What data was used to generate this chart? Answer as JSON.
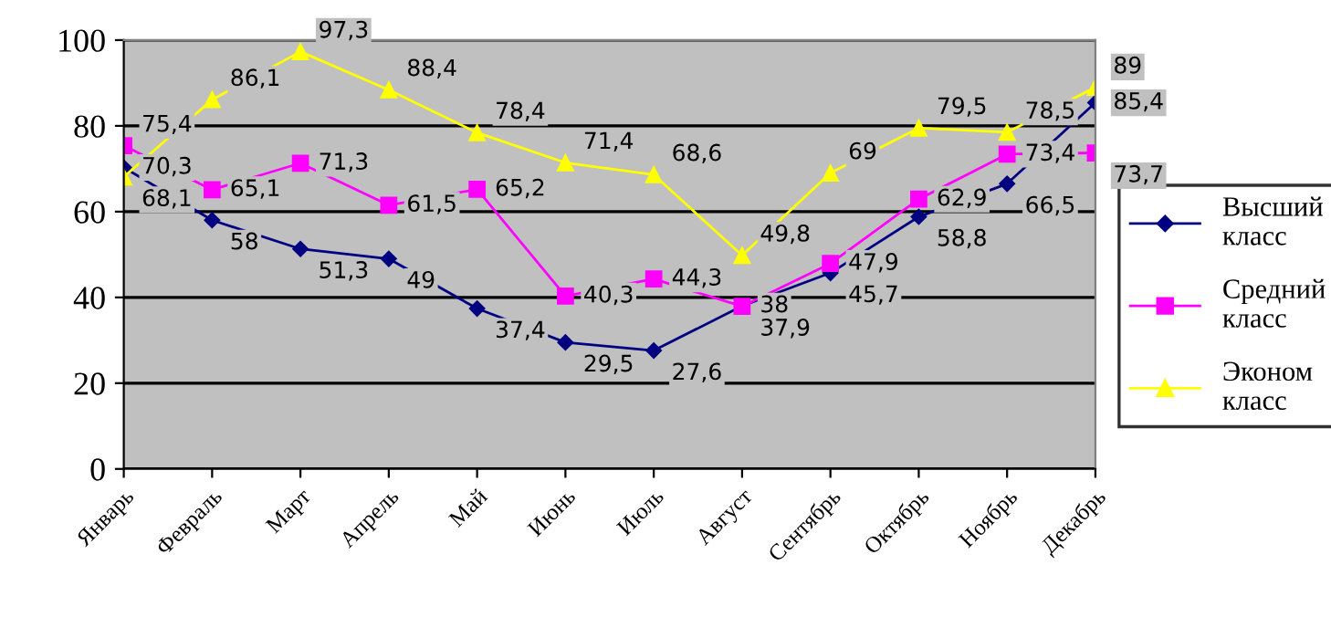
{
  "chart_data": {
    "type": "line",
    "categories": [
      "Январь",
      "Февраль",
      "Март",
      "Апрель",
      "Май",
      "Июнь",
      "Июль",
      "Август",
      "Сентябрь",
      "Октябрь",
      "Ноябрь",
      "Декабрь"
    ],
    "series": [
      {
        "name": "Высший класс",
        "color": "#000080",
        "marker": "diamond",
        "values": [
          70.3,
          58,
          51.3,
          49,
          37.4,
          29.5,
          27.6,
          38,
          45.7,
          58.8,
          66.5,
          85.4
        ],
        "value_labels": [
          "70,3",
          "58",
          "51,3",
          "49",
          "37,4",
          "29,5",
          "27,6",
          "38",
          "45,7",
          "58,8",
          "66,5",
          "85,4"
        ]
      },
      {
        "name": "Средний класс",
        "color": "#ff00ff",
        "marker": "square",
        "values": [
          75.4,
          65.1,
          71.3,
          61.5,
          65.2,
          40.3,
          44.3,
          37.9,
          47.9,
          62.9,
          73.4,
          73.7
        ],
        "value_labels": [
          "75,4",
          "65,1",
          "71,3",
          "61,5",
          "65,2",
          "40,3",
          "44,3",
          "37,9",
          "47,9",
          "62,9",
          "73,4",
          "73,7"
        ]
      },
      {
        "name": "Эконом класс",
        "color": "#ffff00",
        "marker": "triangle",
        "values": [
          68.1,
          86.1,
          97.3,
          88.4,
          78.4,
          71.4,
          68.6,
          49.8,
          69,
          79.5,
          78.5,
          89
        ],
        "value_labels": [
          "68,1",
          "86,1",
          "97,3",
          "88,4",
          "78,4",
          "71,4",
          "68,6",
          "49,8",
          "69",
          "79,5",
          "78,5",
          "89"
        ]
      }
    ],
    "ylim": [
      0,
      100
    ],
    "yticks": [
      0,
      20,
      40,
      60,
      80,
      100
    ],
    "grid": "y",
    "legend": "right"
  }
}
